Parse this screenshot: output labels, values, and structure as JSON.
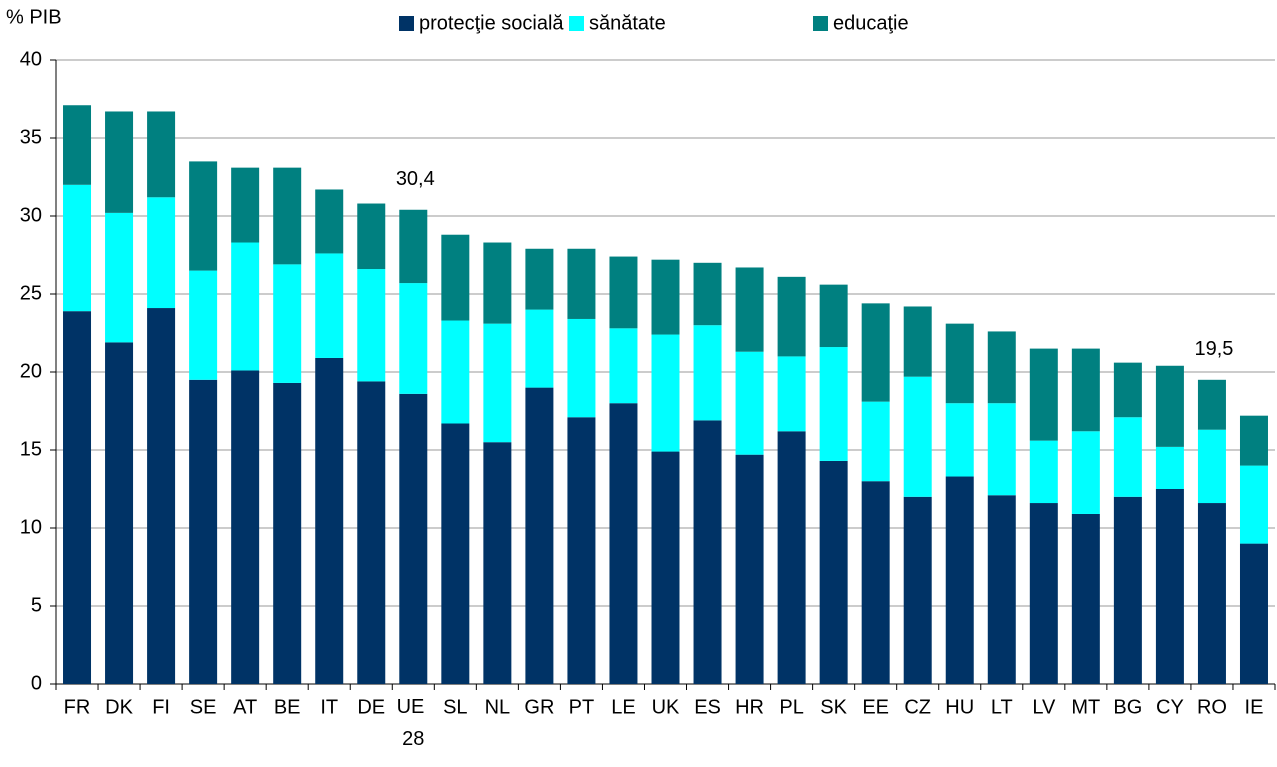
{
  "chart_data": {
    "type": "stacked_bar",
    "y_label": "% PIB",
    "categories": [
      "FR",
      "DK",
      "FI",
      "SE",
      "AT",
      "BE",
      "IT",
      "DE",
      "UE 28",
      "SL",
      "NL",
      "GR",
      "PT",
      "LE",
      "UK",
      "ES",
      "HR",
      "PL",
      "SK",
      "EE",
      "CZ",
      "HU",
      "LT",
      "LV",
      "MT",
      "BG",
      "CY",
      "RO",
      "IE"
    ],
    "series": [
      {
        "name": "protecţie socială",
        "color": "#003366",
        "values": [
          23.9,
          21.9,
          24.1,
          19.5,
          20.1,
          19.3,
          20.9,
          19.4,
          18.6,
          16.7,
          15.5,
          19.0,
          17.1,
          18.0,
          14.9,
          16.9,
          14.7,
          16.2,
          14.3,
          13.0,
          12.0,
          13.3,
          12.1,
          11.6,
          10.9,
          12.0,
          12.5,
          11.6,
          9.0
        ]
      },
      {
        "name": "sănătate",
        "color": "#00ffff",
        "values": [
          8.1,
          8.3,
          7.1,
          7.0,
          8.2,
          7.6,
          6.7,
          7.2,
          7.1,
          6.6,
          7.6,
          5.0,
          6.3,
          4.8,
          7.5,
          6.1,
          6.6,
          4.8,
          7.3,
          5.1,
          7.7,
          4.7,
          5.9,
          4.0,
          5.3,
          5.1,
          2.7,
          4.7,
          5.0
        ]
      },
      {
        "name": "educaţie",
        "color": "#008080",
        "values": [
          5.1,
          6.5,
          5.5,
          7.0,
          4.8,
          6.2,
          4.1,
          4.2,
          4.7,
          5.5,
          5.2,
          3.9,
          4.5,
          4.6,
          4.8,
          4.0,
          5.4,
          5.1,
          4.0,
          6.3,
          4.5,
          5.1,
          4.6,
          5.9,
          5.3,
          3.5,
          5.2,
          3.2,
          3.2
        ]
      }
    ],
    "annotations": [
      {
        "text": "30,4",
        "category": "UE 28"
      },
      {
        "text": "19,5",
        "category": "RO"
      }
    ],
    "ylim": [
      0,
      40
    ],
    "yticks": [
      0,
      5,
      10,
      15,
      20,
      25,
      30,
      35,
      40
    ],
    "grid": true,
    "legend": "top"
  }
}
